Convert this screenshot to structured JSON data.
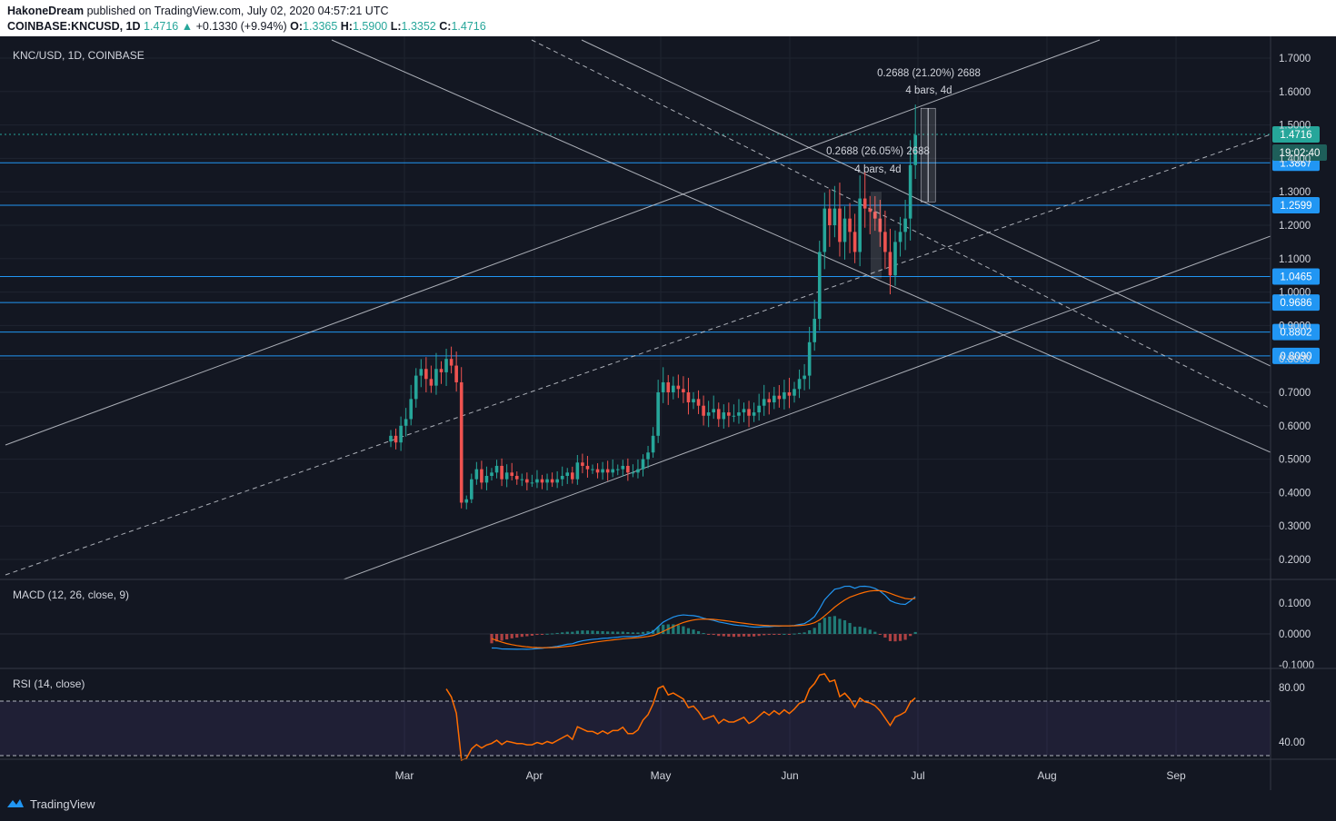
{
  "header": {
    "author": "HakoneDream",
    "published_text": "published on TradingView.com, July 02, 2020 04:57:21 UTC",
    "symbol": "COINBASE:KNCUSD, 1D",
    "last": "1.4716",
    "change": "+0.1330 (+9.94%)",
    "o_label": "O:",
    "o_val": "1.3365",
    "h_label": "H:",
    "h_val": "1.5900",
    "l_label": "L:",
    "l_val": "1.3352",
    "c_label": "C:",
    "c_val": "1.4716"
  },
  "panes": {
    "main_label": "KNC/USD, 1D, COINBASE",
    "macd_label": "MACD (12, 26, close, 9)",
    "rsi_label": "RSI (14, close)"
  },
  "footer": {
    "brand": "TradingView"
  },
  "colors": {
    "background": "#131722",
    "up": "#26a69a",
    "down": "#ef5350",
    "hline": "#2196f3",
    "macd": "#2196f3",
    "signal": "#ff6d00",
    "rsi": "#ff6d00",
    "trend": "#d1d4dc",
    "rsi_band": "#7e57c2"
  },
  "chart_data": {
    "type": "candlestick",
    "price_axis": {
      "ticks": [
        "1.7000",
        "1.6000",
        "1.5000",
        "1.4000",
        "1.3000",
        "1.2000",
        "1.1000",
        "1.0000",
        "0.9000",
        "0.8000",
        "0.7000",
        "0.6000",
        "0.5000",
        "0.4000",
        "0.3000",
        "0.2000"
      ],
      "range": [
        0.14,
        1.77
      ]
    },
    "time_axis": [
      "Mar",
      "Apr",
      "May",
      "Jun",
      "Jul",
      "Aug",
      "Sep"
    ],
    "horizontal_levels": [
      "1.3867",
      "1.2599",
      "1.0465",
      "0.9686",
      "0.8802",
      "0.8090"
    ],
    "last_price_label": "1.4716",
    "countdown_label": "19:02:40",
    "measurements": [
      {
        "value_text": "0.2688 (21.20%) 2688",
        "bars_text": "4 bars, 4d"
      },
      {
        "value_text": "0.2688 (26.05%) 2688",
        "bars_text": "4 bars, 4d"
      }
    ],
    "closes": [
      0.57,
      0.55,
      0.6,
      0.62,
      0.68,
      0.75,
      0.77,
      0.74,
      0.72,
      0.77,
      0.76,
      0.8,
      0.78,
      0.73,
      0.37,
      0.38,
      0.44,
      0.47,
      0.43,
      0.45,
      0.46,
      0.48,
      0.44,
      0.46,
      0.45,
      0.44,
      0.44,
      0.43,
      0.43,
      0.44,
      0.43,
      0.44,
      0.43,
      0.44,
      0.45,
      0.46,
      0.44,
      0.49,
      0.48,
      0.47,
      0.47,
      0.46,
      0.47,
      0.46,
      0.47,
      0.47,
      0.48,
      0.46,
      0.46,
      0.47,
      0.5,
      0.52,
      0.57,
      0.7,
      0.73,
      0.7,
      0.72,
      0.71,
      0.7,
      0.67,
      0.68,
      0.66,
      0.63,
      0.64,
      0.65,
      0.62,
      0.64,
      0.63,
      0.63,
      0.64,
      0.65,
      0.63,
      0.64,
      0.66,
      0.68,
      0.67,
      0.69,
      0.68,
      0.7,
      0.69,
      0.71,
      0.74,
      0.75,
      0.85,
      0.92,
      1.12,
      1.25,
      1.2,
      1.25,
      1.15,
      1.22,
      1.18,
      1.12,
      1.28,
      1.25,
      1.24,
      1.22,
      1.18,
      1.12,
      1.05,
      1.15,
      1.18,
      1.22,
      1.38,
      1.47
    ],
    "macd_axis": [
      "0.1000",
      "0.0000",
      "-0.1000"
    ],
    "rsi_axis": [
      "80.00",
      "40.00"
    ]
  }
}
